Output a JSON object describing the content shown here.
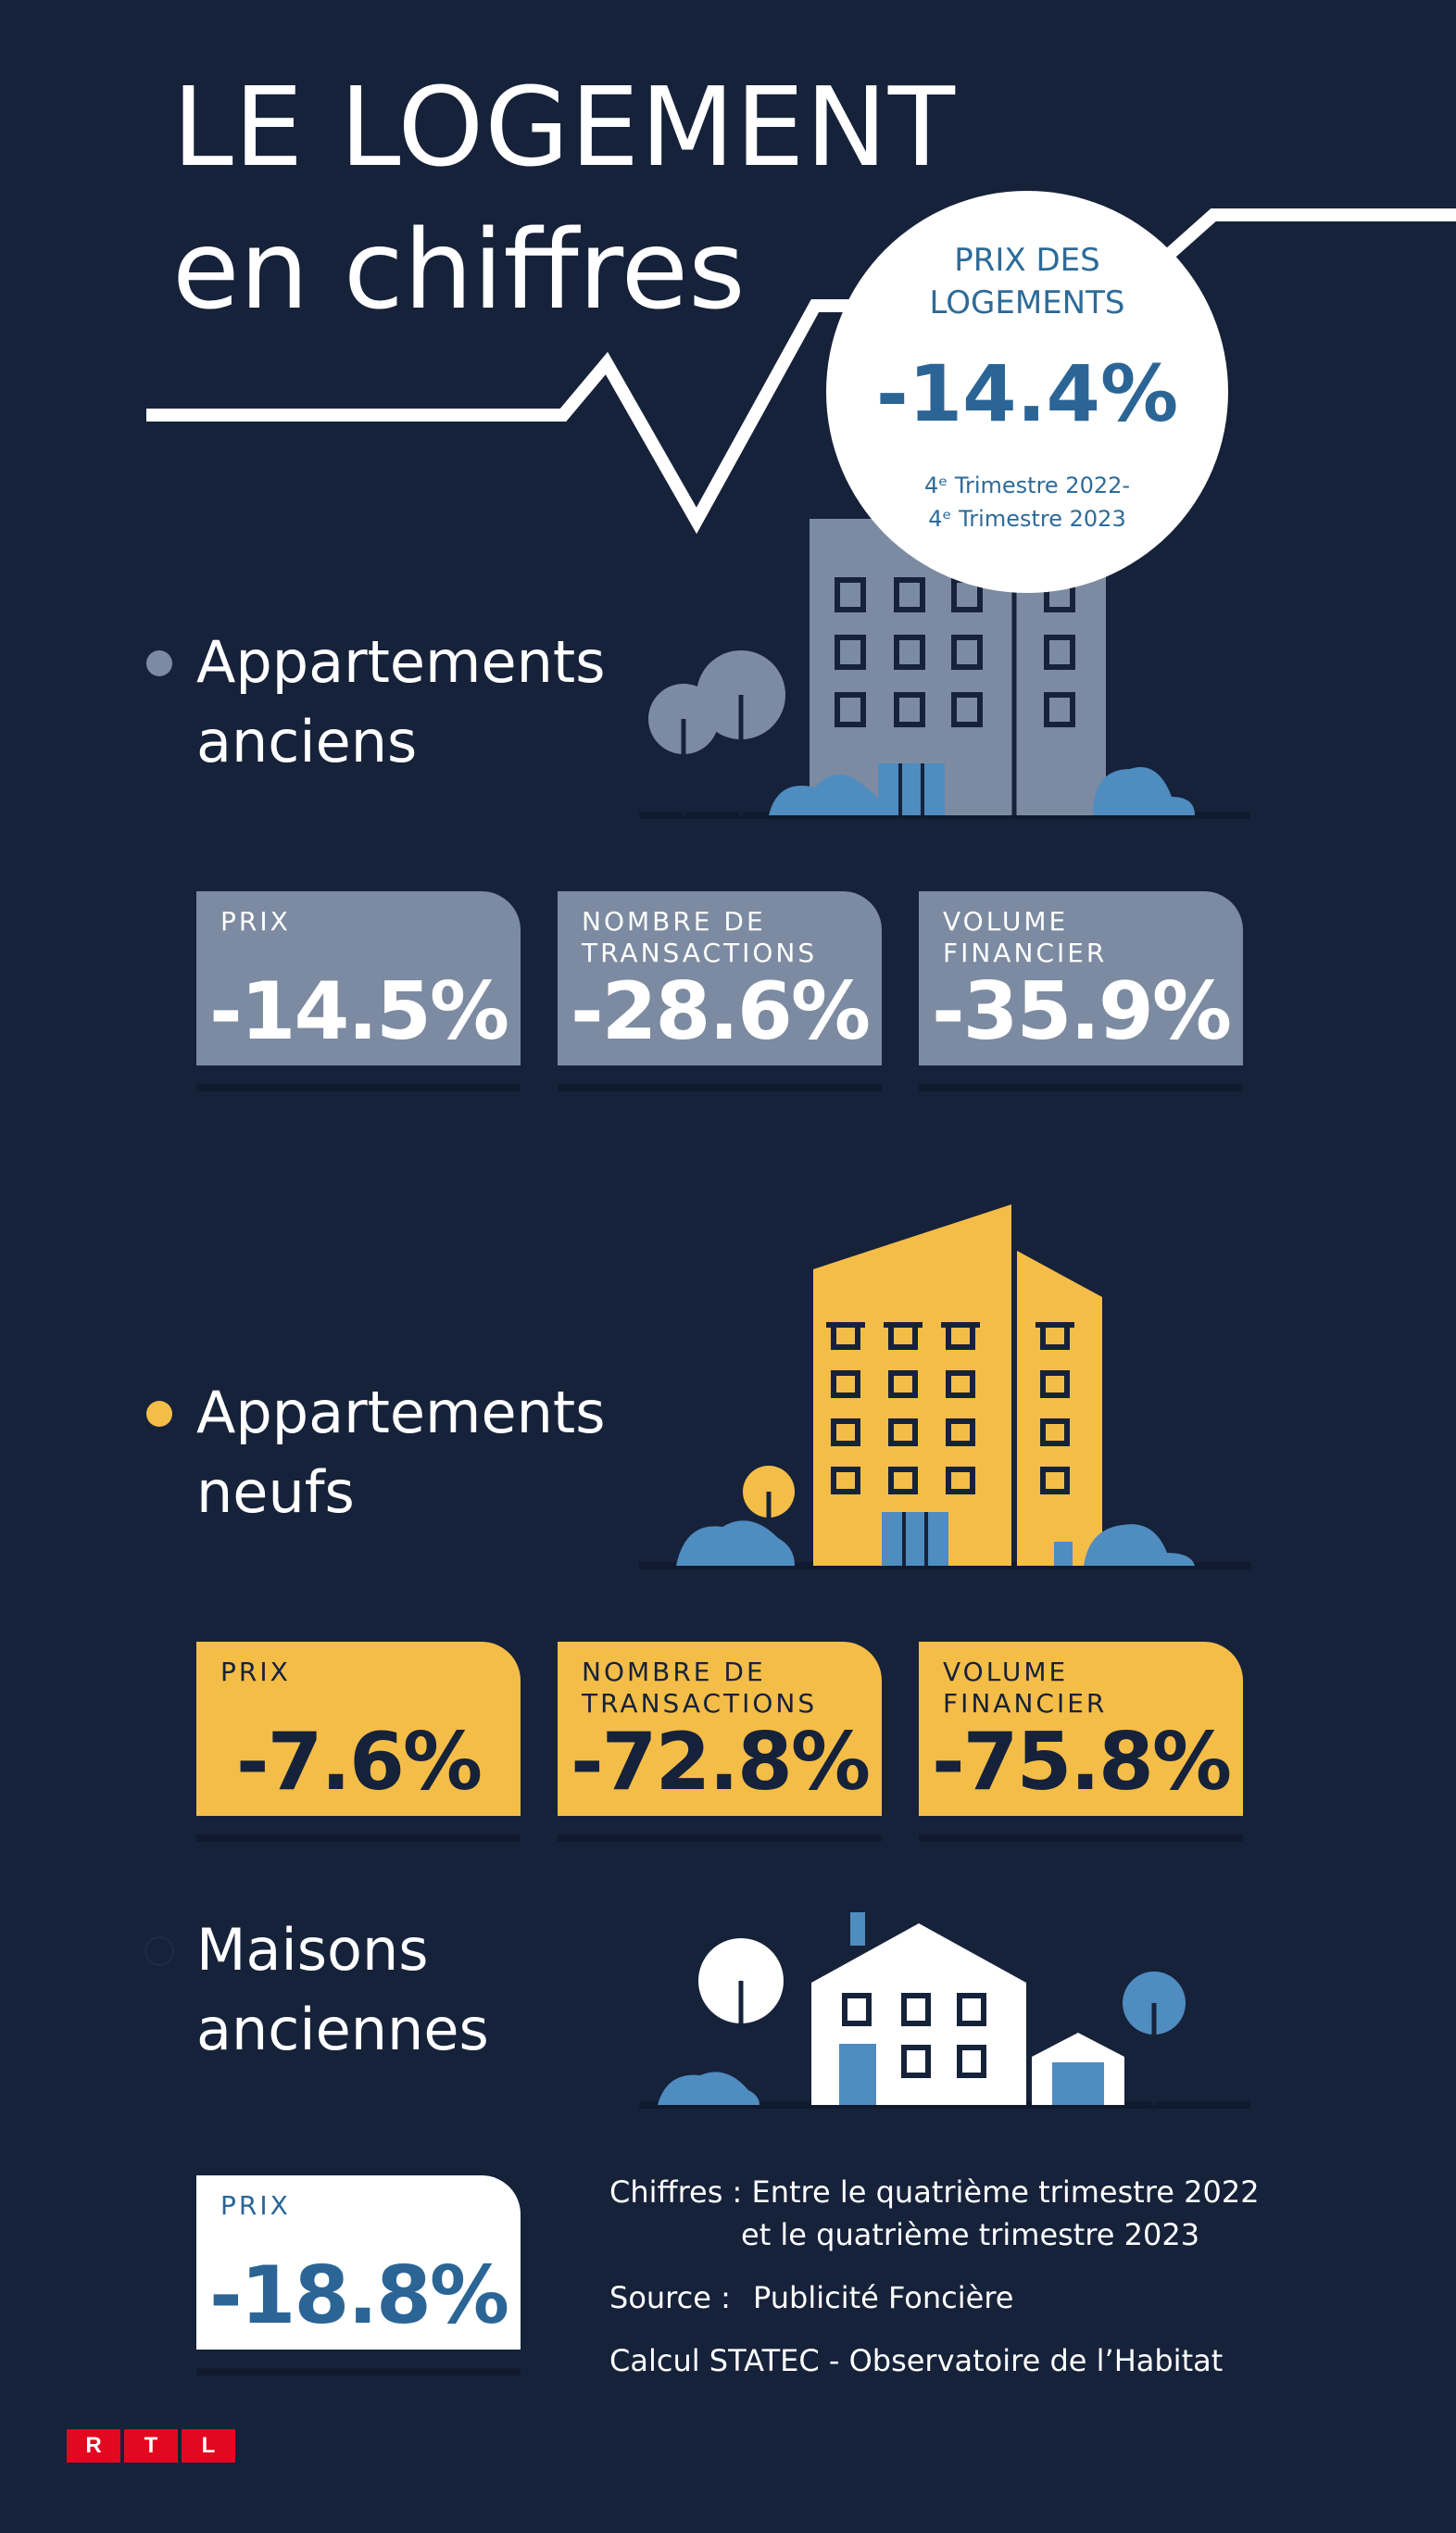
{
  "header": {
    "title_line1": "LE LOGEMENT",
    "title_line2": "en chiffres"
  },
  "highlight": {
    "title_line1": "PRIX DES",
    "title_line2": "LOGEMENTS",
    "value": "-14.4%",
    "period_line1": "4ᵉ Trimestre 2022-",
    "period_line2": "4ᵉ Trimestre 2023"
  },
  "sections": [
    {
      "title_line1": "Appartements",
      "title_line2": "anciens",
      "color": "#7c8ba1",
      "cards": [
        {
          "label": "PRIX",
          "value": "-14.5%"
        },
        {
          "label": "NOMBRE DE TRANSACTIONS",
          "value": "-28.6%"
        },
        {
          "label": "VOLUME FINANCIER",
          "value": "-35.9%"
        }
      ]
    },
    {
      "title_line1": "Appartements",
      "title_line2": "neufs",
      "color": "#f4bd48",
      "cards": [
        {
          "label": "PRIX",
          "value": "-7.6%"
        },
        {
          "label": "NOMBRE DE TRANSACTIONS",
          "value": "-72.8%"
        },
        {
          "label": "VOLUME FINANCIER",
          "value": "-75.8%"
        }
      ]
    },
    {
      "title_line1": "Maisons",
      "title_line2": "anciennes",
      "color": "#ffffff",
      "cards": [
        {
          "label": "PRIX",
          "value": "-18.8%"
        }
      ]
    }
  ],
  "footer": {
    "chiffres_label": "Chiffres :",
    "chiffres_line1": "Entre le quatrième trimestre 2022",
    "chiffres_line2": "et le quatrième trimestre 2023",
    "source_label": "Source :",
    "source_value": "Publicité Foncière",
    "calcul": "Calcul STATEC - Observatoire de l’Habitat"
  },
  "logo": {
    "letters": [
      "R",
      "T",
      "L"
    ],
    "color": "#e3081f"
  },
  "colors": {
    "background": "#16223a",
    "accent_blue": "#2b6596",
    "card_grey": "#7c8ba1",
    "card_yellow": "#f4bd48"
  }
}
